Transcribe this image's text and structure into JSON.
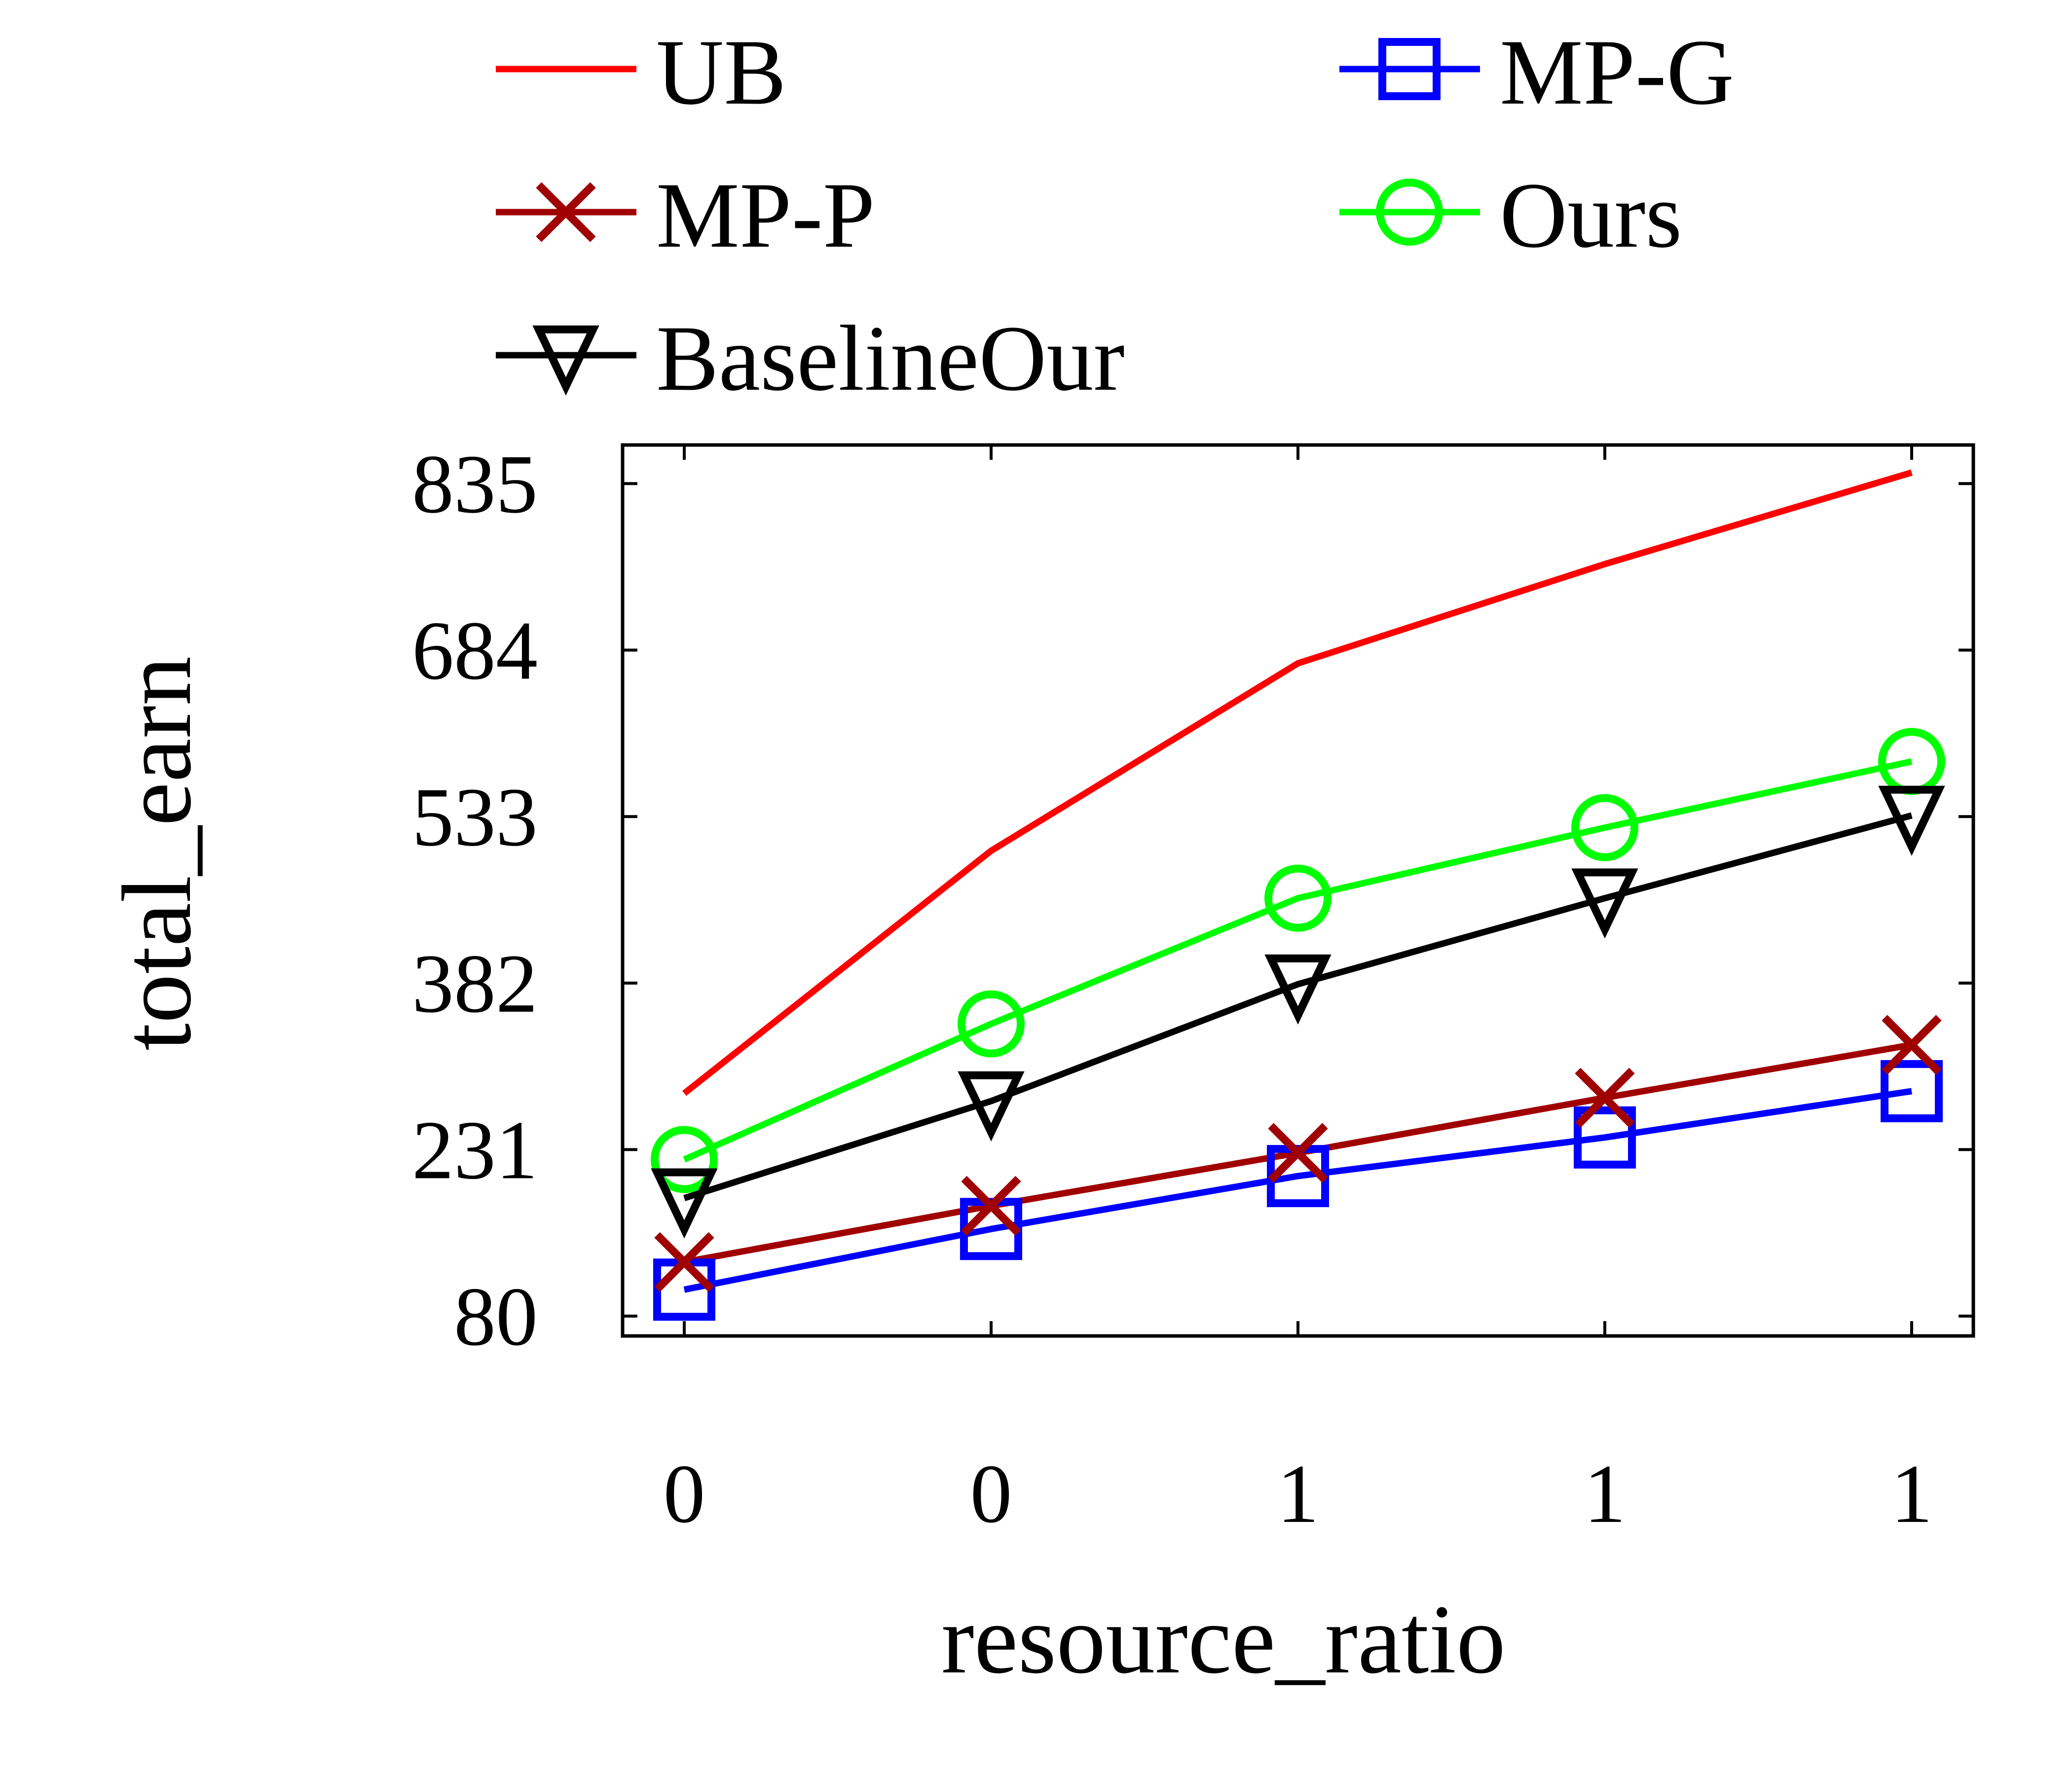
{
  "chart_data": {
    "type": "line",
    "xlabel": "resource_ratio",
    "ylabel": "total_earn",
    "categories": [
      "0",
      "0",
      "1",
      "1",
      "1"
    ],
    "yticks": [
      80,
      231,
      382,
      533,
      684,
      835
    ],
    "ylim": [
      62,
      870
    ],
    "grid": false,
    "legend_position": "top",
    "series": [
      {
        "name": "UB",
        "color": "#ff0000",
        "marker": "none",
        "values": [
          282,
          502,
          672,
          762,
          845
        ]
      },
      {
        "name": "MP-G",
        "color": "#0000ff",
        "marker": "square",
        "values": [
          104,
          159,
          207,
          242,
          284
        ]
      },
      {
        "name": "MP-P",
        "color": "#a00000",
        "marker": "x",
        "values": [
          129,
          180,
          228,
          278,
          326
        ]
      },
      {
        "name": "Ours",
        "color": "#00ff00",
        "marker": "circle",
        "values": [
          222,
          345,
          459,
          523,
          583
        ]
      },
      {
        "name": "BaselineOur",
        "color": "#000000",
        "marker": "triangle-down",
        "values": [
          187,
          275,
          381,
          459,
          534
        ]
      }
    ]
  }
}
